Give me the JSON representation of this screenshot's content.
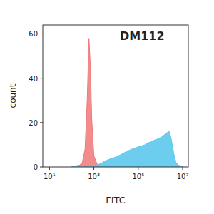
{
  "chart_data": {
    "type": "area",
    "title": "DM112",
    "x_label": "FITC",
    "y_label": "count",
    "log": "x",
    "x": [
      100,
      200,
      300,
      400,
      500,
      600,
      700,
      800,
      1000,
      1500,
      2000,
      3000,
      5000,
      10000,
      20000,
      30000,
      50000,
      100000,
      200000,
      300000,
      500000,
      700000,
      1000000,
      1500000,
      2000000,
      2500000,
      3000000,
      4000000,
      5000000,
      7000000,
      10000000
    ],
    "series": [
      {
        "color": "#f07878",
        "values": [
          0,
          0.3,
          2,
          8,
          30,
          58,
          45,
          22,
          5,
          0.5,
          0,
          0,
          0,
          0,
          0,
          0,
          0,
          0,
          0,
          0,
          0,
          0,
          0,
          0,
          0,
          0,
          0,
          0,
          0,
          0,
          0
        ]
      },
      {
        "color": "#5cc8ec",
        "values": [
          0,
          0,
          0,
          0,
          0,
          0,
          0,
          0,
          0.5,
          1,
          1.5,
          2.5,
          3.5,
          4.5,
          6,
          7,
          8,
          9,
          10,
          11,
          12,
          12.5,
          13,
          14.5,
          15.5,
          16,
          13,
          6,
          2,
          0.3,
          0
        ]
      }
    ],
    "xlim": [
      5,
      18000000
    ],
    "xticks": [
      {
        "value": 10,
        "label": "10¹"
      },
      {
        "value": 1000,
        "label": "10³"
      },
      {
        "value": 100000,
        "label": "10⁵"
      },
      {
        "value": 10000000,
        "label": "10⁷"
      }
    ],
    "ylim": [
      0,
      64
    ],
    "yticks": [
      0,
      20,
      40,
      60
    ]
  }
}
